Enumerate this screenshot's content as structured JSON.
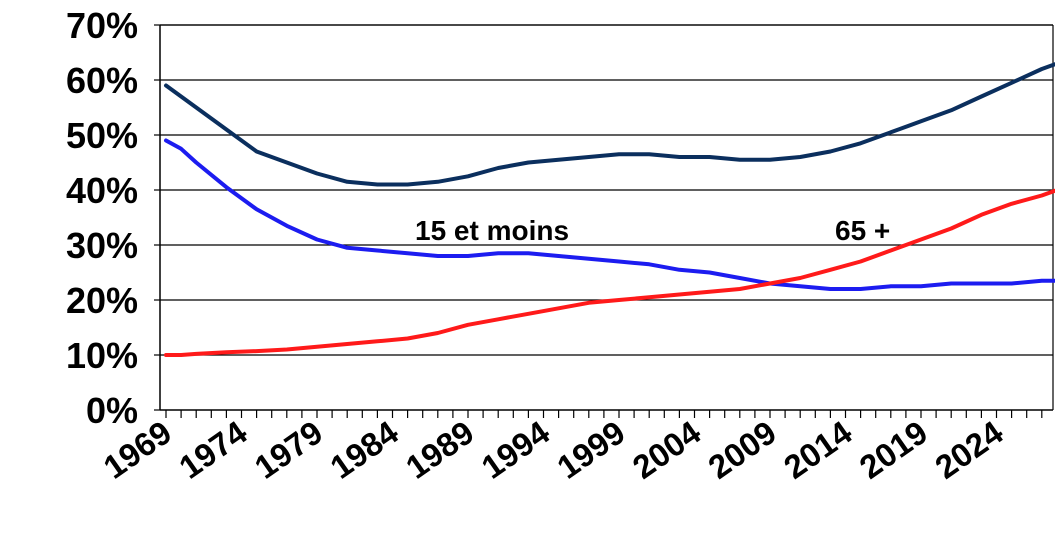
{
  "chart_data": {
    "type": "line",
    "title": "",
    "xlabel": "",
    "ylabel": "",
    "x_start": 1970,
    "x_end": 2029,
    "ylim": [
      0,
      70
    ],
    "yticks": [
      "0%",
      "10%",
      "20%",
      "30%",
      "40%",
      "50%",
      "60%",
      "70%"
    ],
    "xticks": [
      "1969",
      "1974",
      "1979",
      "1984",
      "1989",
      "1994",
      "1999",
      "2004",
      "2009",
      "2014",
      "2019",
      "2024"
    ],
    "grid": true,
    "annotations": [
      {
        "text": "15 et moins"
      },
      {
        "text": "65 +"
      }
    ],
    "series": [
      {
        "name": "",
        "color": "#0b2f5e",
        "x": [
          1970,
          1971,
          1972,
          1974,
          1976,
          1978,
          1980,
          1982,
          1984,
          1986,
          1988,
          1990,
          1992,
          1994,
          1996,
          1998,
          2000,
          2002,
          2004,
          2006,
          2008,
          2010,
          2012,
          2014,
          2016,
          2018,
          2020,
          2022,
          2024,
          2026,
          2028,
          2029
        ],
        "values": [
          59,
          57,
          55,
          51,
          47,
          45,
          43,
          41.5,
          41,
          41,
          41.5,
          42.5,
          44,
          45,
          45.5,
          46,
          46.5,
          46.5,
          46,
          46,
          45.5,
          45.5,
          46,
          47,
          48.5,
          50.5,
          52.5,
          54.5,
          57,
          59.5,
          62,
          63
        ]
      },
      {
        "name": "15 et moins",
        "color": "#1c1cf0",
        "x": [
          1970,
          1971,
          1972,
          1974,
          1976,
          1978,
          1980,
          1982,
          1984,
          1986,
          1988,
          1990,
          1992,
          1994,
          1996,
          1998,
          2000,
          2002,
          2004,
          2006,
          2008,
          2010,
          2012,
          2014,
          2016,
          2018,
          2020,
          2022,
          2024,
          2026,
          2028,
          2029
        ],
        "values": [
          49,
          47.5,
          45,
          40.5,
          36.5,
          33.5,
          31,
          29.5,
          29,
          28.5,
          28,
          28,
          28.5,
          28.5,
          28,
          27.5,
          27,
          26.5,
          25.5,
          25,
          24,
          23,
          22.5,
          22,
          22,
          22.5,
          22.5,
          23,
          23,
          23,
          23.5,
          23.5
        ]
      },
      {
        "name": "65 +",
        "color": "#ff1a1a",
        "x": [
          1970,
          1971,
          1972,
          1974,
          1976,
          1978,
          1980,
          1982,
          1984,
          1986,
          1988,
          1990,
          1992,
          1994,
          1996,
          1998,
          2000,
          2002,
          2004,
          2006,
          2008,
          2010,
          2012,
          2014,
          2016,
          2018,
          2020,
          2022,
          2024,
          2026,
          2028,
          2029
        ],
        "values": [
          10,
          10,
          10.2,
          10.5,
          10.7,
          11,
          11.5,
          12,
          12.5,
          13,
          14,
          15.5,
          16.5,
          17.5,
          18.5,
          19.5,
          20,
          20.5,
          21,
          21.5,
          22,
          23,
          24,
          25.5,
          27,
          29,
          31,
          33,
          35.5,
          37.5,
          39,
          40
        ]
      }
    ]
  }
}
